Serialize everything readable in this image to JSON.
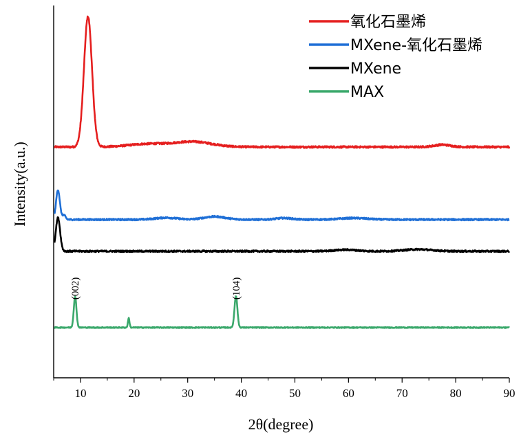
{
  "chart_data": {
    "type": "line",
    "title": "",
    "xlabel": "2θ(degree)",
    "ylabel": "Intensity(a.u.)",
    "xlim": [
      5,
      90
    ],
    "ylim": [
      0,
      1
    ],
    "xticks": [
      10,
      20,
      30,
      40,
      50,
      60,
      70,
      80,
      90
    ],
    "yticks_visible": false,
    "legend_position": "top-right",
    "series": [
      {
        "name": "氧化石墨烯",
        "color": "#e51f1f",
        "baseline": 0.62,
        "noise": 0.0025,
        "peaks": [
          {
            "x": 11.4,
            "height": 0.35,
            "width": 0.75
          },
          {
            "x": 22.5,
            "height": 0.008,
            "width": 3.5
          },
          {
            "x": 31.0,
            "height": 0.014,
            "width": 3.5
          },
          {
            "x": 77.5,
            "height": 0.006,
            "width": 1.5
          }
        ]
      },
      {
        "name": "MXene-氧化石墨烯",
        "color": "#1f6fd6",
        "baseline": 0.425,
        "noise": 0.0022,
        "peaks": [
          {
            "x": 5.8,
            "height": 0.08,
            "width": 0.35
          },
          {
            "x": 6.9,
            "height": 0.012,
            "width": 0.3
          },
          {
            "x": 26.0,
            "height": 0.005,
            "width": 2.0
          },
          {
            "x": 35.0,
            "height": 0.008,
            "width": 2.0
          },
          {
            "x": 48.0,
            "height": 0.004,
            "width": 1.5
          },
          {
            "x": 61.0,
            "height": 0.004,
            "width": 2.5
          }
        ]
      },
      {
        "name": "MXene",
        "color": "#000000",
        "baseline": 0.34,
        "noise": 0.0022,
        "peaks": [
          {
            "x": 5.8,
            "height": 0.09,
            "width": 0.4
          },
          {
            "x": 59.5,
            "height": 0.004,
            "width": 2.0
          },
          {
            "x": 73.0,
            "height": 0.005,
            "width": 2.5
          }
        ]
      },
      {
        "name": "MAX",
        "color": "#3aa86b",
        "baseline": 0.135,
        "noise": 0.0012,
        "peaks": [
          {
            "x": 9.0,
            "height": 0.083,
            "width": 0.25
          },
          {
            "x": 19.0,
            "height": 0.025,
            "width": 0.15
          },
          {
            "x": 39.0,
            "height": 0.085,
            "width": 0.27
          }
        ]
      }
    ],
    "annotations": [
      {
        "text": "(002)",
        "x": 9.0,
        "y": 0.24
      },
      {
        "text": "(104)",
        "x": 39.0,
        "y": 0.24
      }
    ]
  }
}
